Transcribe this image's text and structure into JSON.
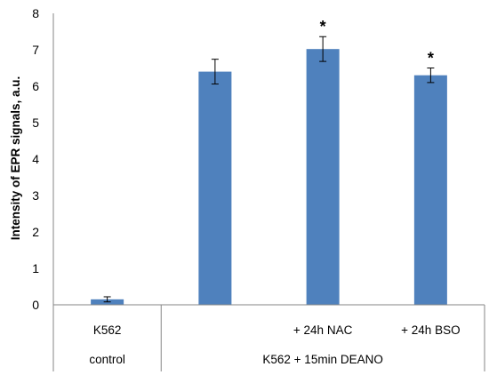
{
  "chart_data": {
    "type": "bar",
    "ylabel": "Intensity of EPR signals, a.u.",
    "ylim": [
      0,
      8
    ],
    "yticks": [
      0,
      1,
      2,
      3,
      4,
      5,
      6,
      7,
      8
    ],
    "grid": false,
    "color": "#4f81bd",
    "categories": [
      "K562",
      "",
      "+ 24h NAC",
      "+ 24h BSO"
    ],
    "groups": [
      {
        "label": "control",
        "span": 1
      },
      {
        "label": "K562 + 15min DEANO",
        "span": 3
      }
    ],
    "values": [
      0.15,
      6.4,
      7.02,
      6.3
    ],
    "errors": [
      0.07,
      0.34,
      0.34,
      0.2
    ],
    "annotations": [
      "",
      "",
      "*",
      "*"
    ]
  }
}
